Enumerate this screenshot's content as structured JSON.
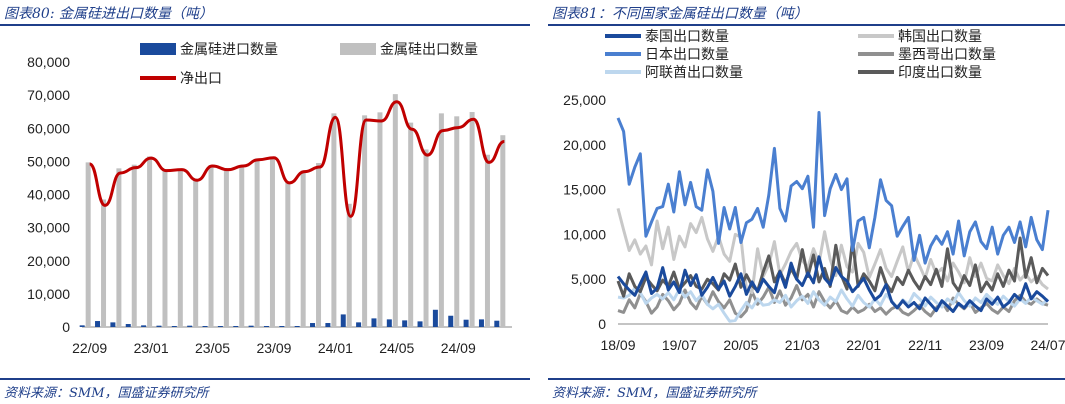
{
  "left": {
    "title": "图表80: 金属硅进出口数量（吨）",
    "source": "资料来源：SMM，国盛证券研究所",
    "colors": {
      "import": "#1a4a9c",
      "export": "#c0c0c0",
      "net": "#c00000"
    },
    "chart_data": {
      "type": "bar",
      "legend": [
        "金属硅进口数量",
        "金属硅出口数量",
        "净出口"
      ],
      "x_ticks": [
        "22/09",
        "23/01",
        "23/05",
        "23/09",
        "24/01",
        "24/05",
        "24/09"
      ],
      "y_ticks": [
        "0",
        "10,000",
        "20,000",
        "30,000",
        "40,000",
        "50,000",
        "60,000",
        "70,000",
        "80,000"
      ],
      "ylim": [
        0,
        80000
      ],
      "months": [
        "22/09",
        "22/10",
        "22/11",
        "22/12",
        "23/01",
        "23/02",
        "23/03",
        "23/04",
        "23/05",
        "23/06",
        "23/07",
        "23/08",
        "23/09",
        "23/10",
        "23/11",
        "23/12",
        "24/01",
        "24/02",
        "24/03",
        "24/04",
        "24/05",
        "24/06",
        "24/07",
        "24/08",
        "24/09",
        "24/10",
        "24/11",
        "24/12"
      ],
      "series": [
        {
          "name": "金属硅进口数量",
          "values": [
            500,
            1800,
            1400,
            900,
            500,
            400,
            300,
            400,
            300,
            300,
            300,
            400,
            300,
            300,
            300,
            1200,
            1200,
            3800,
            1400,
            2600,
            2300,
            2000,
            1700,
            5200,
            3400,
            2200,
            2300,
            1900
          ]
        },
        {
          "name": "金属硅出口数量",
          "values": [
            49700,
            38500,
            47900,
            49000,
            51500,
            47600,
            47800,
            44700,
            48900,
            47800,
            48900,
            50900,
            51400,
            43800,
            47200,
            49500,
            64500,
            37200,
            63900,
            64800,
            70300,
            61700,
            53600,
            64500,
            63600,
            64900,
            52000,
            57900
          ]
        },
        {
          "name": "净出口",
          "values": [
            49200,
            36700,
            46500,
            48100,
            51000,
            47200,
            47500,
            44300,
            48600,
            47500,
            48600,
            50500,
            51100,
            43500,
            46900,
            48300,
            63300,
            33400,
            62500,
            62200,
            68000,
            59700,
            51900,
            59300,
            60200,
            62700,
            49700,
            56000
          ]
        }
      ]
    }
  },
  "right": {
    "title": "图表81：不同国家金属硅出口数量（吨）",
    "source": "资料来源：SMM，国盛证券研究所",
    "chart_data": {
      "type": "line",
      "x_ticks": [
        "18/09",
        "19/07",
        "20/05",
        "21/03",
        "22/01",
        "22/11",
        "23/09",
        "24/07"
      ],
      "y_ticks": [
        "0",
        "5,000",
        "10,000",
        "15,000",
        "20,000",
        "25,000"
      ],
      "ylim": [
        0,
        25000
      ],
      "legend_layout": "top, two columns",
      "series": [
        {
          "name": "泰国出口数量",
          "color": "#1a4a9c",
          "values": [
            5300,
            4500,
            3800,
            3200,
            4500,
            5800,
            3400,
            4000,
            6300,
            3800,
            4700,
            3500,
            6000,
            4300,
            5500,
            3200,
            4100,
            5200,
            3900,
            4800,
            3100,
            4200,
            5600,
            3300,
            4700,
            3600,
            5000,
            4200,
            3500,
            5800,
            4100,
            6800,
            5000,
            4300,
            5700,
            4600,
            7500,
            5100,
            4400,
            6300,
            5300,
            4800,
            3600,
            4300,
            5100,
            3800,
            2700,
            3200,
            4400,
            2500,
            1800,
            2600,
            1900,
            2400,
            1700,
            2900,
            2200,
            1500,
            2600,
            2000,
            1400,
            2300,
            1800,
            2600,
            2000,
            1500,
            2800,
            2200,
            3000,
            1900,
            2400,
            3300,
            2700,
            4500,
            2800,
            3600,
            3100,
            2500
          ]
        },
        {
          "name": "韩国出口数量",
          "color": "#c8c8c8",
          "values": [
            12900,
            10500,
            8200,
            9400,
            7800,
            8700,
            6600,
            11500,
            8400,
            10800,
            7200,
            9800,
            8600,
            11200,
            10200,
            11900,
            9500,
            8100,
            9800,
            7800,
            7000,
            10000,
            9700,
            3900,
            3500,
            8400,
            5300,
            6600,
            9200,
            5500,
            6700,
            8100,
            9000,
            7100,
            6300,
            8400,
            6800,
            10300,
            7200,
            5400,
            8800,
            6400,
            5800,
            9000,
            8000,
            5200,
            6700,
            8300,
            6200,
            5300,
            7000,
            8600,
            5800,
            7800,
            6500,
            5100,
            7200,
            5600,
            6200,
            4800,
            6800,
            5800,
            4600,
            7400,
            5300,
            6800,
            5100,
            4800,
            6600,
            5400,
            4500,
            6200,
            4900,
            5600,
            4700,
            5300,
            4400,
            3900
          ]
        },
        {
          "name": "日本出口数量",
          "color": "#4a7fd0",
          "values": [
            23000,
            21500,
            15600,
            17500,
            19000,
            9800,
            11400,
            12900,
            13100,
            15600,
            12500,
            17000,
            13300,
            15800,
            13100,
            12700,
            17200,
            14800,
            9000,
            13000,
            10600,
            13000,
            9100,
            11300,
            11700,
            12900,
            10800,
            14400,
            19600,
            12900,
            11500,
            15400,
            15900,
            15100,
            16500,
            10800,
            23600,
            12100,
            15100,
            16700,
            15000,
            16200,
            8200,
            11500,
            11900,
            8500,
            11900,
            16100,
            13800,
            13200,
            9800,
            10900,
            11900,
            7100,
            9900,
            6800,
            8700,
            9800,
            8900,
            10300,
            7800,
            11500,
            7600,
            10300,
            11400,
            9200,
            8400,
            10800,
            7800,
            9900,
            10800,
            9100,
            11400,
            8600,
            11900,
            9400,
            8300,
            12700
          ]
        },
        {
          "name": "墨西哥出口数量",
          "color": "#909090",
          "values": [
            1500,
            1300,
            2700,
            1800,
            3400,
            2500,
            1200,
            1900,
            3300,
            2600,
            1600,
            2300,
            3800,
            2400,
            1700,
            3100,
            2200,
            3600,
            2500,
            1800,
            2700,
            1200,
            800,
            1500,
            3600,
            2200,
            3000,
            4100,
            2400,
            3700,
            2100,
            2900,
            4300,
            2700,
            3300,
            1900,
            3600,
            2500,
            1800,
            2600,
            1500,
            1200,
            1900,
            1300,
            1600,
            2200,
            1400,
            1800,
            1100,
            1700,
            2000,
            1300,
            1000,
            1500,
            2100,
            1400,
            900,
            1800,
            2500,
            1500,
            2900,
            2200,
            1700,
            2400,
            1300,
            1800,
            2300,
            1600,
            1200,
            1900,
            1400,
            2600,
            3200,
            2500,
            2200,
            2800,
            2300,
            2100
          ]
        },
        {
          "name": "阿联酋出口数量",
          "color": "#bdd7ee",
          "values": [
            3000,
            2900,
            3200,
            4000,
            3500,
            2300,
            2900,
            3300,
            2800,
            3500,
            2700,
            3900,
            3000,
            3600,
            2600,
            3300,
            2200,
            1700,
            2200,
            1200,
            300,
            400,
            1500,
            2400,
            1800,
            2800,
            2100,
            2200,
            2700,
            2400,
            3200,
            1900,
            2600,
            3100,
            2300,
            3600,
            2700,
            2100,
            3000,
            2500,
            3800,
            2800,
            2000,
            3200,
            2400,
            1900,
            2800,
            2100,
            3300,
            2600,
            1800,
            2700,
            2200,
            3400,
            2800,
            2000,
            3000,
            2400,
            1900,
            2800,
            2300,
            3500,
            2600,
            2000,
            2900,
            2400,
            3300,
            2700,
            2200,
            3100,
            2500,
            2000,
            2800,
            2300,
            3000,
            2600,
            2200,
            2800
          ]
        },
        {
          "name": "印度出口数量",
          "color": "#5a5a5a",
          "values": [
            4800,
            3100,
            5600,
            4200,
            3600,
            5200,
            4400,
            3700,
            4900,
            4200,
            5800,
            3900,
            4600,
            5400,
            4200,
            3900,
            5000,
            4500,
            3800,
            5600,
            4900,
            6700,
            4100,
            5500,
            4300,
            3700,
            5800,
            7600,
            4700,
            5900,
            4500,
            6200,
            5000,
            8300,
            5300,
            7700,
            4700,
            6200,
            4200,
            8800,
            5400,
            3900,
            9300,
            4200,
            5600,
            4800,
            3700,
            6300,
            4500,
            3600,
            5200,
            4400,
            6000,
            4800,
            3900,
            5300,
            4400,
            6100,
            4200,
            8400,
            4600,
            3700,
            5400,
            4300,
            6600,
            3600,
            4700,
            3800,
            5600,
            4200,
            6000,
            4800,
            9600,
            5200,
            7400,
            4600,
            6200,
            5400
          ]
        }
      ]
    }
  }
}
